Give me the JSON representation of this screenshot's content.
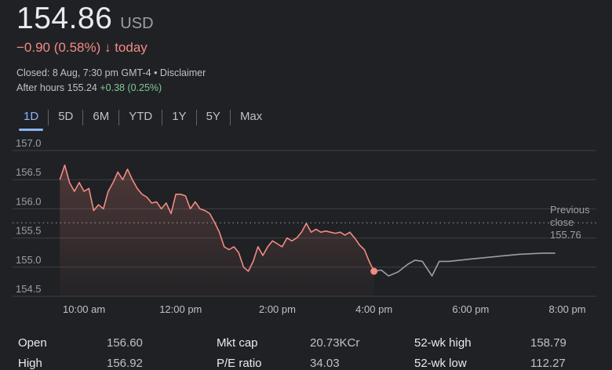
{
  "quote": {
    "price": "154.86",
    "currency": "USD",
    "change": "−0.90 (0.58%) ↓ today",
    "closed": "Closed: 8 Aug, 7:30 pm GMT-4 • Disclaimer",
    "after_hours_label": "After hours 155.24",
    "after_hours_change": "+0.38 (0.25%)",
    "colors": {
      "down": "#f28b82",
      "up": "#81c995",
      "accent": "#8ab4f8"
    }
  },
  "tabs": [
    {
      "label": "1D",
      "active": true
    },
    {
      "label": "5D"
    },
    {
      "label": "6M"
    },
    {
      "label": "YTD"
    },
    {
      "label": "1Y"
    },
    {
      "label": "5Y"
    },
    {
      "label": "Max"
    }
  ],
  "chart_data": {
    "type": "line",
    "y_ticks": [
      "157.0",
      "156.5",
      "156.0",
      "155.5",
      "155.0",
      "154.5"
    ],
    "x_ticks": [
      "10:00 am",
      "12:00 pm",
      "2:00 pm",
      "4:00 pm",
      "6:00 pm",
      "8:00 pm"
    ],
    "ylim": [
      154.5,
      157.0
    ],
    "previous_close": 155.76,
    "previous_close_label": [
      "Previous",
      "close",
      "155.76"
    ],
    "series": [
      {
        "session": "regular",
        "color": "#f28b82",
        "x": [
          9.5,
          9.6,
          9.7,
          9.8,
          9.9,
          10.0,
          10.1,
          10.2,
          10.3,
          10.4,
          10.5,
          10.6,
          10.7,
          10.8,
          10.9,
          11.0,
          11.1,
          11.2,
          11.3,
          11.4,
          11.5,
          11.6,
          11.7,
          11.8,
          11.9,
          12.0,
          12.1,
          12.2,
          12.3,
          12.4,
          12.5,
          12.6,
          12.7,
          12.8,
          12.9,
          13.0,
          13.1,
          13.2,
          13.3,
          13.4,
          13.5,
          13.6,
          13.7,
          13.8,
          13.9,
          14.0,
          14.1,
          14.2,
          14.3,
          14.4,
          14.5,
          14.6,
          14.7,
          14.8,
          14.9,
          15.0,
          15.1,
          15.2,
          15.3,
          15.4,
          15.5,
          15.6,
          15.7,
          15.8,
          15.9,
          16.0
        ],
        "y": [
          156.5,
          156.75,
          156.45,
          156.3,
          156.45,
          156.3,
          156.35,
          155.97,
          156.07,
          156.0,
          156.3,
          156.45,
          156.63,
          156.5,
          156.68,
          156.5,
          156.35,
          156.25,
          156.2,
          156.1,
          156.12,
          156.0,
          156.1,
          155.92,
          156.25,
          156.25,
          156.22,
          156.0,
          156.12,
          156.0,
          155.97,
          155.92,
          155.77,
          155.6,
          155.35,
          155.3,
          155.35,
          155.25,
          155.0,
          154.93,
          155.1,
          155.35,
          155.2,
          155.35,
          155.45,
          155.4,
          155.35,
          155.5,
          155.45,
          155.5,
          155.6,
          155.75,
          155.6,
          155.65,
          155.6,
          155.62,
          155.6,
          155.58,
          155.6,
          155.55,
          155.6,
          155.5,
          155.38,
          155.3,
          155.1,
          154.93
        ]
      },
      {
        "session": "after-hours",
        "color": "#9aa0a6",
        "x": [
          16.0,
          16.15,
          16.3,
          16.5,
          16.7,
          16.85,
          17.0,
          17.2,
          17.35,
          17.55,
          18.0,
          18.5,
          19.0,
          19.5,
          19.75
        ],
        "y": [
          154.93,
          154.95,
          154.85,
          154.92,
          155.05,
          155.12,
          155.1,
          154.85,
          155.1,
          155.1,
          155.14,
          155.18,
          155.22,
          155.24,
          155.24
        ]
      }
    ],
    "grid": true
  },
  "stats": [
    {
      "label": "Open",
      "value": "156.60"
    },
    {
      "label": "High",
      "value": "156.92"
    },
    {
      "label": "Mkt cap",
      "value": "20.73KCr"
    },
    {
      "label": "P/E ratio",
      "value": "34.03"
    },
    {
      "label": "52-wk high",
      "value": "158.79"
    },
    {
      "label": "52-wk low",
      "value": "112.27"
    }
  ]
}
